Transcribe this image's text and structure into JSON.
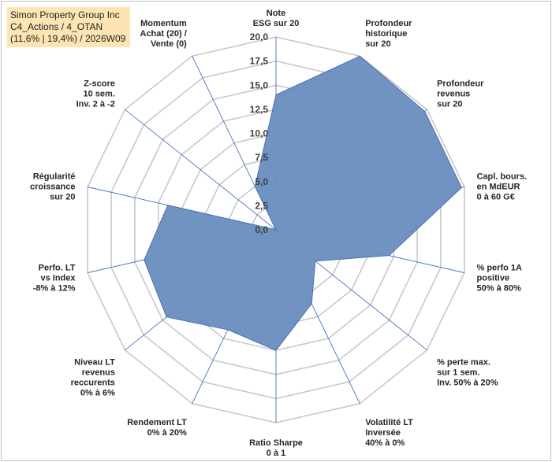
{
  "chart_data": {
    "type": "radar",
    "title_lines": [
      "Simon Property Group Inc",
      "C4_Actions / 4_OTAN",
      "(11,6% | 19,4%) / 2026W09"
    ],
    "r_ticks": [
      "0,0",
      "2,5",
      "5,0",
      "7,5",
      "10,0",
      "12,5",
      "15,0",
      "17,5",
      "20,0"
    ],
    "rlim": [
      0,
      20
    ],
    "grid": true,
    "series_color": "#6b8fc0",
    "series_edge": "#4a72b0",
    "axes": [
      {
        "label": [
          "Note",
          "ESG sur 20"
        ],
        "value": 14.0
      },
      {
        "label": [
          "Profondeur",
          "historique",
          "sur 20"
        ],
        "value": 20.0
      },
      {
        "label": [
          "Profondeur",
          "revenus",
          "sur 20"
        ],
        "value": 19.7
      },
      {
        "label": [
          "Capl. bours.",
          "en MdEUR",
          "0 à 60 G€"
        ],
        "value": 19.7
      },
      {
        "label": [
          "% perfo 1A",
          "positive",
          "50% à 80%"
        ],
        "value": 12.0
      },
      {
        "label": [
          "% perte max.",
          "sur 1 sem.",
          "Inv. 50% à 20%"
        ],
        "value": 5.2
      },
      {
        "label": [
          "Volatilité LT",
          "Inversée",
          "40% à 0%"
        ],
        "value": 8.5
      },
      {
        "label": [
          "Ratio Sharpe",
          "0 à 1"
        ],
        "value": 12.5
      },
      {
        "label": [
          "Rendement LT",
          "0% à 20%"
        ],
        "value": 11.5
      },
      {
        "label": [
          "Niveau LT",
          "revenus",
          "reccurents",
          "0% à 6%"
        ],
        "value": 14.5
      },
      {
        "label": [
          "Perfo. LT",
          "vs Index",
          "-8% à 12%"
        ],
        "value": 14.0
      },
      {
        "label": [
          "Régularité",
          "croissance",
          "sur 20"
        ],
        "value": 11.5
      },
      {
        "label": [
          "Z-score",
          "10 sem.",
          "Inv. 2 à -2"
        ],
        "value": 0.0
      },
      {
        "label": [
          "Momentum",
          "Achat (20) /",
          "Vente (0)"
        ],
        "value": 5.0
      }
    ]
  }
}
